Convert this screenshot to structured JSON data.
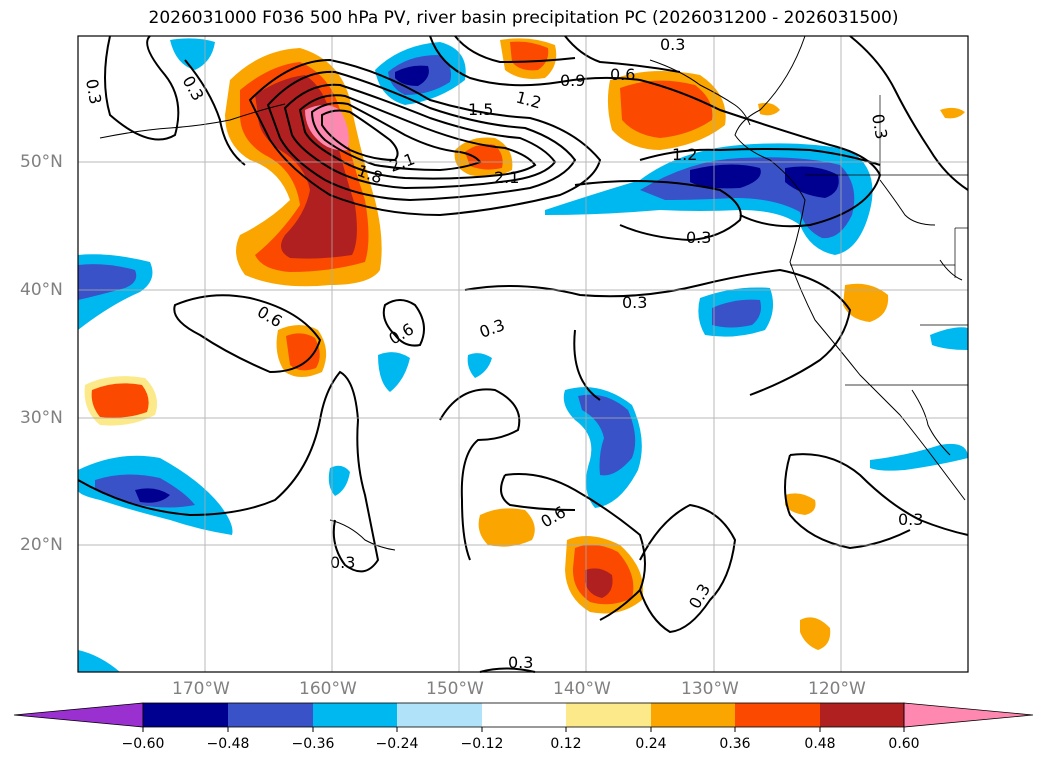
{
  "title": "2026031000 F036 500 hPa PV, river basin precipitation PC (2026031200 - 2026031500)",
  "lat_labels": [
    "50°N",
    "40°N",
    "30°N",
    "20°N"
  ],
  "lon_labels": [
    "170°W",
    "160°W",
    "150°W",
    "140°W",
    "130°W",
    "120°W"
  ],
  "contour_labels": [
    "0.3",
    "0.3",
    "0.3",
    "0.9",
    "0.6",
    "1.2",
    "1.5",
    "1.8",
    "2.1",
    "2.1",
    "1.2",
    "0.3",
    "0.6",
    "0.6",
    "0.3",
    "0.3",
    "0.6",
    "0.3",
    "0.3",
    "0.3",
    "0.3",
    "0.3"
  ],
  "colorbar": {
    "ticks": [
      "−0.60",
      "−0.48",
      "−0.36",
      "−0.24",
      "−0.12",
      "0.12",
      "0.24",
      "0.36",
      "0.48",
      "0.60"
    ],
    "colors": [
      "#9b30d0",
      "#000090",
      "#3a52c8",
      "#00b8f0",
      "#b0e2fa",
      "#ffffff",
      "#fbe98a",
      "#fba600",
      "#fb4a00",
      "#b02020",
      "#ff88b0"
    ]
  },
  "colors": {
    "neg_strong": "#000090",
    "neg_mid": "#3a52c8",
    "neg_light": "#00b8f0",
    "neg_faint": "#b0e2fa",
    "pos_faint": "#fbe98a",
    "pos_light": "#fba600",
    "pos_mid": "#fb4a00",
    "pos_strong": "#b02020",
    "pos_max": "#ff88b0"
  }
}
